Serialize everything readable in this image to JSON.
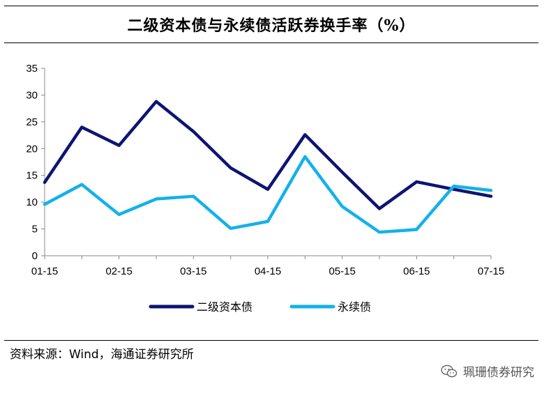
{
  "header": {
    "title": "二级资本债与永续债活跃券换手率（%）"
  },
  "footer": {
    "source": "资料来源：Wind，海通证券研究所",
    "watermark": "珮珊债券研究",
    "watermark_icon": "wechat-icon"
  },
  "chart_data": {
    "type": "line",
    "title": "二级资本债与永续债活跃券换手率（%）",
    "x": [
      "01-15",
      "",
      "02-15",
      "",
      "03-15",
      "",
      "04-15",
      "",
      "05-15",
      "",
      "06-15",
      "",
      "07-15"
    ],
    "x_tick_labels": [
      "01-15",
      "02-15",
      "03-15",
      "04-15",
      "05-15",
      "06-15",
      "07-15"
    ],
    "y_ticks": [
      0,
      5,
      10,
      15,
      20,
      25,
      30,
      35
    ],
    "ylim": [
      0,
      35
    ],
    "grid": false,
    "legend_position": "bottom-center",
    "series": [
      {
        "name": "二级资本债",
        "color": "#0d1472",
        "values": [
          13.7,
          24.0,
          20.6,
          28.8,
          23.2,
          16.4,
          12.4,
          22.6,
          15.6,
          8.8,
          13.8,
          12.4,
          11.1
        ]
      },
      {
        "name": "永续债",
        "color": "#13b1ea",
        "values": [
          9.6,
          13.3,
          7.7,
          10.6,
          11.1,
          5.1,
          6.4,
          18.5,
          9.2,
          4.4,
          4.9,
          13.0,
          12.2
        ]
      }
    ]
  }
}
